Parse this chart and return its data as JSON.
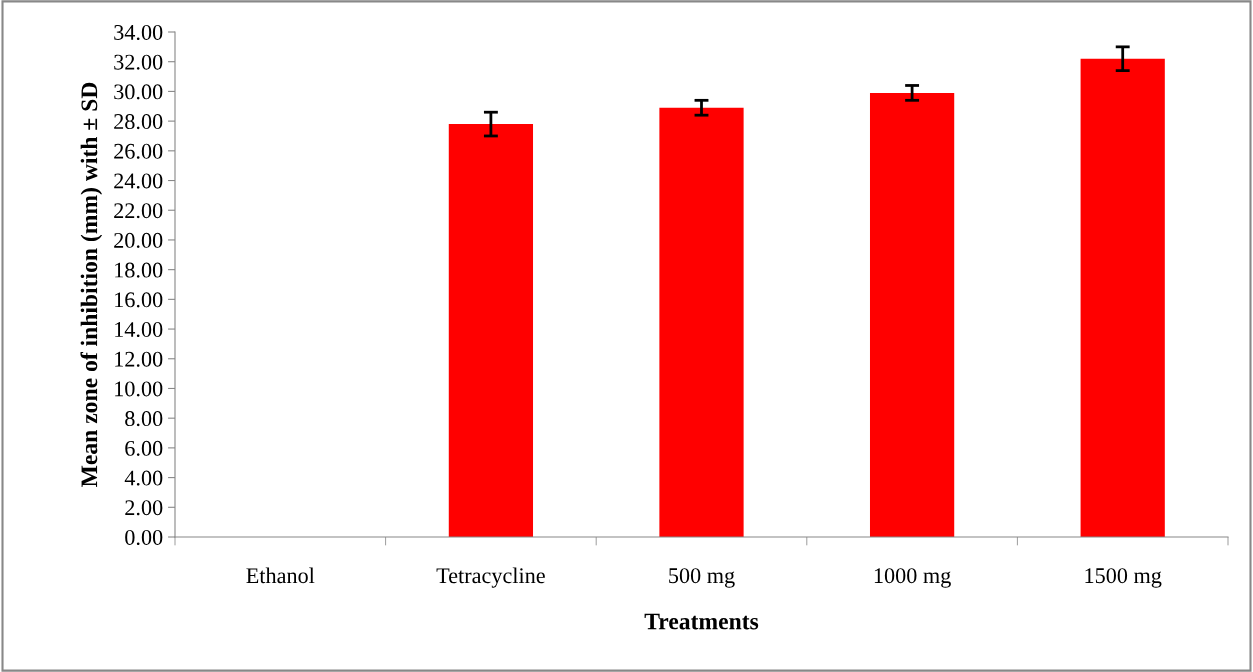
{
  "chart_data": {
    "type": "bar",
    "xlabel": "Treatments",
    "ylabel": "Mean zone of inhibition (mm) with ± SD",
    "categories": [
      "Ethanol",
      "Tetracycline",
      "500 mg",
      "1000 mg",
      "1500 mg"
    ],
    "values": [
      0,
      27.8,
      28.9,
      29.9,
      32.2
    ],
    "errors": [
      null,
      0.8,
      0.5,
      0.5,
      0.8
    ],
    "color": "#ff0000",
    "ylim": [
      0,
      34
    ],
    "yticks": [
      {
        "value": 0,
        "label": "0.00"
      },
      {
        "value": 2,
        "label": "2.00"
      },
      {
        "value": 4,
        "label": "4.00"
      },
      {
        "value": 6,
        "label": "6.00"
      },
      {
        "value": 8,
        "label": "8.00"
      },
      {
        "value": 10,
        "label": "10.00"
      },
      {
        "value": 12,
        "label": "12.00"
      },
      {
        "value": 14,
        "label": "14.00"
      },
      {
        "value": 16,
        "label": "16.00"
      },
      {
        "value": 18,
        "label": "18.00"
      },
      {
        "value": 20,
        "label": "20.00"
      },
      {
        "value": 22,
        "label": "22.00"
      },
      {
        "value": 24,
        "label": "24.00"
      },
      {
        "value": 26,
        "label": "26.00"
      },
      {
        "value": 28,
        "label": "28.00"
      },
      {
        "value": 30,
        "label": "30.00"
      },
      {
        "value": 32,
        "label": "32.00"
      },
      {
        "value": 34,
        "label": "34.00"
      }
    ],
    "grid": false,
    "legend": false
  }
}
